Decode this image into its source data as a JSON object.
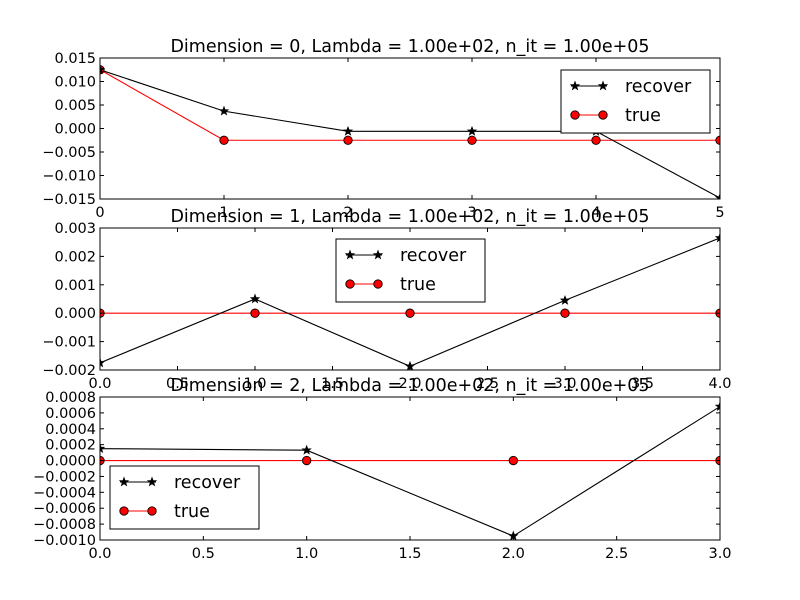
{
  "chart_data": [
    {
      "type": "line",
      "title": "Dimension = 0, Lambda = 1.00e+02, n_it = 1.00e+05",
      "x": [
        0,
        1,
        2,
        3,
        4,
        5
      ],
      "xlim": [
        0,
        5
      ],
      "ylim": [
        -0.015,
        0.015
      ],
      "xticks": [
        0,
        1,
        2,
        3,
        4,
        5
      ],
      "xtick_labels": [
        "0",
        "1",
        "2",
        "3",
        "4",
        "5"
      ],
      "yticks": [
        0.015,
        0.01,
        0.005,
        0.0,
        -0.005,
        -0.01,
        -0.015
      ],
      "ytick_labels": [
        "0.015",
        "0.010",
        "0.005",
        "0.000",
        "−0.005",
        "−0.010",
        "−0.015"
      ],
      "legend_position": "upper right",
      "series": [
        {
          "name": "recover",
          "color": "#000000",
          "marker": "star",
          "values": [
            0.0125,
            0.0037,
            -0.0006,
            -0.0006,
            -0.0006,
            -0.0148
          ]
        },
        {
          "name": "true",
          "color": "#ff0000",
          "marker": "circle",
          "values": [
            0.0125,
            -0.0025,
            -0.0025,
            -0.0025,
            -0.0025,
            -0.0025
          ]
        }
      ]
    },
    {
      "type": "line",
      "title": "Dimension = 1, Lambda = 1.00e+02, n_it = 1.00e+05",
      "x": [
        0,
        1,
        2,
        3,
        4
      ],
      "xlim": [
        0,
        4
      ],
      "ylim": [
        -0.002,
        0.003
      ],
      "xticks": [
        0,
        0.5,
        1,
        1.5,
        2,
        2.5,
        3,
        3.5,
        4
      ],
      "xtick_labels": [
        "0.0",
        "0.5",
        "1.0",
        "1.5",
        "2.0",
        "2.5",
        "3.0",
        "3.5",
        "4.0"
      ],
      "yticks": [
        0.003,
        0.002,
        0.001,
        0.0,
        -0.001,
        -0.002
      ],
      "ytick_labels": [
        "0.003",
        "0.002",
        "0.001",
        "0.000",
        "−0.001",
        "−0.002"
      ],
      "legend_position": "upper center",
      "series": [
        {
          "name": "recover",
          "color": "#000000",
          "marker": "star",
          "values": [
            -0.00175,
            0.0005,
            -0.00187,
            0.00045,
            0.00265
          ]
        },
        {
          "name": "true",
          "color": "#ff0000",
          "marker": "circle",
          "values": [
            0,
            0,
            0,
            0,
            0
          ]
        }
      ]
    },
    {
      "type": "line",
      "title": "Dimension = 2, Lambda = 1.00e+02, n_it = 1.00e+05",
      "x": [
        0,
        1,
        2,
        3
      ],
      "xlim": [
        0,
        3
      ],
      "ylim": [
        -0.001,
        0.0008
      ],
      "xticks": [
        0,
        0.5,
        1,
        1.5,
        2,
        2.5,
        3
      ],
      "xtick_labels": [
        "0.0",
        "0.5",
        "1.0",
        "1.5",
        "2.0",
        "2.5",
        "3.0"
      ],
      "yticks": [
        0.0008,
        0.0006,
        0.0004,
        0.0002,
        0.0,
        -0.0002,
        -0.0004,
        -0.0006,
        -0.0008,
        -0.001
      ],
      "ytick_labels": [
        "0.0008",
        "0.0006",
        "0.0004",
        "0.0002",
        "0.0000",
        "−0.0002",
        "−0.0004",
        "−0.0006",
        "−0.0008",
        "−0.0010"
      ],
      "legend_position": "lower left",
      "series": [
        {
          "name": "recover",
          "color": "#000000",
          "marker": "star",
          "values": [
            0.00015,
            0.00013,
            -0.00095,
            0.00068
          ]
        },
        {
          "name": "true",
          "color": "#ff0000",
          "marker": "circle",
          "values": [
            0,
            0,
            0,
            0
          ]
        }
      ]
    }
  ]
}
